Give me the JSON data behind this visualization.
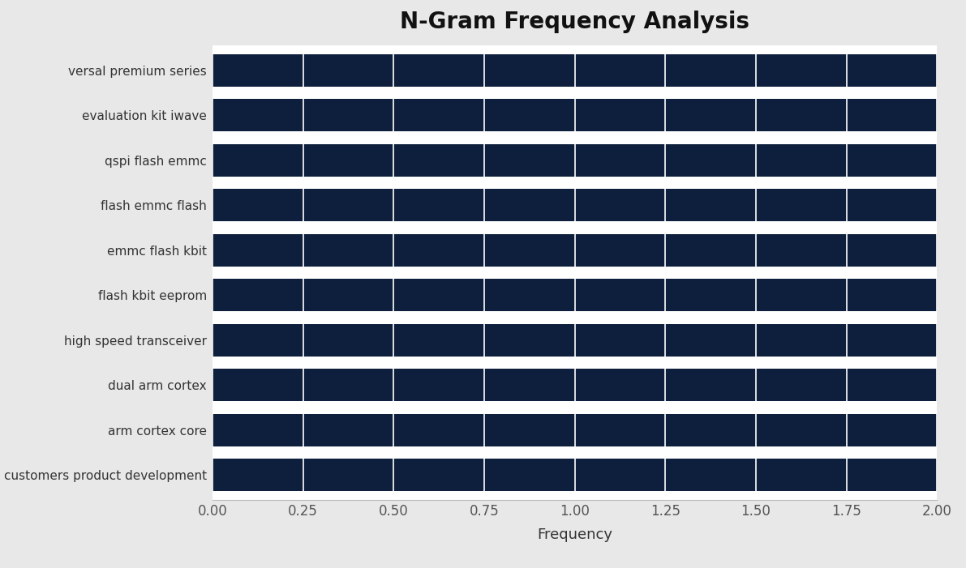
{
  "title": "N-Gram Frequency Analysis",
  "xlabel": "Frequency",
  "categories": [
    "customers product development",
    "arm cortex core",
    "dual arm cortex",
    "high speed transceiver",
    "flash kbit eeprom",
    "emmc flash kbit",
    "flash emmc flash",
    "qspi flash emmc",
    "evaluation kit iwave",
    "versal premium series"
  ],
  "values": [
    2.0,
    2.0,
    2.0,
    2.0,
    2.0,
    2.0,
    2.0,
    2.0,
    2.0,
    2.0
  ],
  "bar_color": "#0d1f3c",
  "figure_bg_color": "#e8e8e8",
  "plot_bg_color": "#ffffff",
  "xlim": [
    0,
    2.0
  ],
  "xticks": [
    0.0,
    0.25,
    0.5,
    0.75,
    1.0,
    1.25,
    1.5,
    1.75,
    2.0
  ],
  "title_fontsize": 20,
  "label_fontsize": 13,
  "tick_fontsize": 12,
  "ytick_fontsize": 11,
  "bar_height": 0.72
}
